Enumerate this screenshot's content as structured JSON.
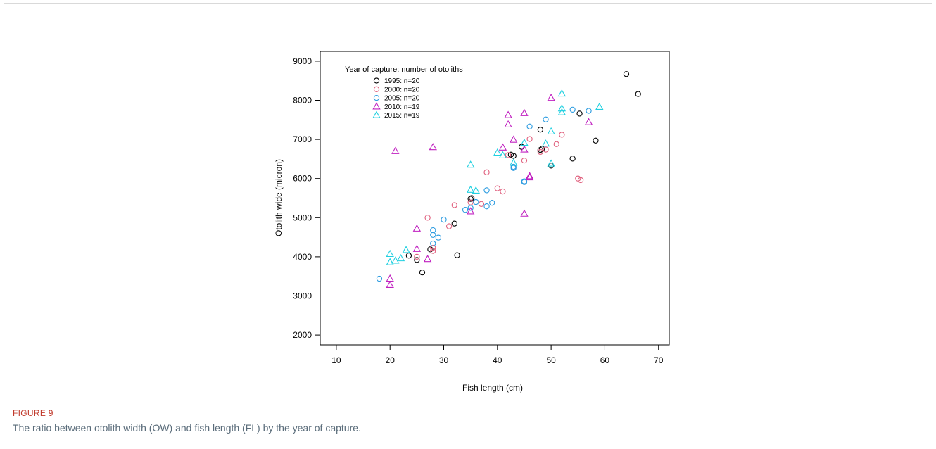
{
  "figure": {
    "label": "FIGURE 9",
    "caption": "The ratio between otolith width (OW) and fish length (FL) by the year of capture."
  },
  "chart_data": {
    "type": "scatter",
    "xlabel": "Fish length (cm)",
    "ylabel": "Otolith wide (micron)",
    "xlim": [
      7,
      72
    ],
    "ylim": [
      1750,
      9250
    ],
    "xticks": [
      10,
      20,
      30,
      40,
      50,
      60,
      70
    ],
    "yticks": [
      2000,
      3000,
      4000,
      5000,
      6000,
      7000,
      8000,
      9000
    ],
    "grid": false,
    "legend_title": "Year of capture: number of otoliths",
    "legend_position": "top-left",
    "series": [
      {
        "name": "1995: n=20",
        "marker": "circle",
        "color": "#000000",
        "points": [
          [
            23.5,
            4030
          ],
          [
            25,
            3920
          ],
          [
            26,
            3600
          ],
          [
            27.5,
            4190
          ],
          [
            32,
            4850
          ],
          [
            32.5,
            4040
          ],
          [
            35,
            5480
          ],
          [
            35.2,
            5500
          ],
          [
            42.5,
            6610
          ],
          [
            43,
            6580
          ],
          [
            44.5,
            6810
          ],
          [
            48,
            7250
          ],
          [
            48,
            6730
          ],
          [
            48.3,
            6760
          ],
          [
            50,
            6330
          ],
          [
            54,
            6510
          ],
          [
            55.3,
            7660
          ],
          [
            58.3,
            6970
          ],
          [
            64,
            8670
          ],
          [
            66.2,
            8160
          ]
        ]
      },
      {
        "name": "2000: n=20",
        "marker": "circle",
        "color": "#e0607e",
        "points": [
          [
            25,
            4000
          ],
          [
            27,
            5000
          ],
          [
            28,
            4150
          ],
          [
            28,
            4230
          ],
          [
            31,
            4780
          ],
          [
            32,
            5320
          ],
          [
            35,
            5390
          ],
          [
            37,
            5350
          ],
          [
            38,
            6160
          ],
          [
            40,
            5750
          ],
          [
            41,
            5670
          ],
          [
            42,
            6600
          ],
          [
            45,
            6460
          ],
          [
            46,
            7010
          ],
          [
            48,
            6680
          ],
          [
            49,
            6740
          ],
          [
            51,
            6880
          ],
          [
            52,
            7120
          ],
          [
            55,
            6000
          ],
          [
            55.5,
            5960
          ]
        ]
      },
      {
        "name": "2005: n=20",
        "marker": "circle",
        "color": "#2b9be0",
        "points": [
          [
            18,
            3440
          ],
          [
            28,
            4340
          ],
          [
            28,
            4560
          ],
          [
            28,
            4680
          ],
          [
            29,
            4490
          ],
          [
            30,
            4950
          ],
          [
            34,
            5200
          ],
          [
            35,
            5250
          ],
          [
            36,
            5400
          ],
          [
            38,
            5290
          ],
          [
            38,
            5700
          ],
          [
            39,
            5380
          ],
          [
            43,
            6270
          ],
          [
            43,
            6300
          ],
          [
            45,
            5910
          ],
          [
            45,
            5930
          ],
          [
            46,
            7330
          ],
          [
            49,
            7510
          ],
          [
            54,
            7760
          ],
          [
            57,
            7730
          ]
        ]
      },
      {
        "name": "2010: n=19",
        "marker": "triangle",
        "color": "#c020c0",
        "points": [
          [
            20,
            3280
          ],
          [
            20,
            3440
          ],
          [
            21,
            6700
          ],
          [
            25,
            4200
          ],
          [
            25,
            4720
          ],
          [
            27,
            3940
          ],
          [
            28,
            6800
          ],
          [
            35,
            5160
          ],
          [
            41,
            6790
          ],
          [
            42,
            7380
          ],
          [
            42,
            7620
          ],
          [
            43,
            6990
          ],
          [
            45,
            5100
          ],
          [
            45,
            6740
          ],
          [
            45,
            7670
          ],
          [
            46,
            6030
          ],
          [
            46,
            6060
          ],
          [
            50,
            8060
          ],
          [
            57,
            7440
          ]
        ]
      },
      {
        "name": "2015: n=19",
        "marker": "triangle",
        "color": "#20d0e0",
        "points": [
          [
            20,
            3860
          ],
          [
            20,
            4070
          ],
          [
            21,
            3900
          ],
          [
            22,
            3960
          ],
          [
            23,
            4170
          ],
          [
            35,
            5710
          ],
          [
            35,
            6350
          ],
          [
            36,
            5690
          ],
          [
            40,
            6660
          ],
          [
            41,
            6590
          ],
          [
            43,
            6400
          ],
          [
            45,
            6910
          ],
          [
            49,
            6890
          ],
          [
            50,
            6380
          ],
          [
            50,
            7200
          ],
          [
            52,
            7690
          ],
          [
            52,
            7790
          ],
          [
            52,
            8170
          ],
          [
            59,
            7830
          ]
        ]
      }
    ]
  }
}
